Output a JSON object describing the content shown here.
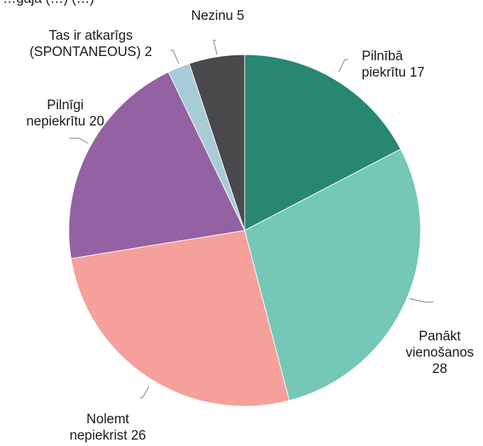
{
  "chart_data": {
    "type": "pie",
    "title": "…gajā (…) (…)",
    "categories": [
      "Pilnībā piekrītu",
      "Panākt vienošanos",
      "Nolemt nepiekrist",
      "Pilnīgi nepiekrītu",
      "Tas ir atkarīgs (SPONTANEOUS)",
      "Nezinu"
    ],
    "values": [
      17,
      28,
      26,
      20,
      2,
      5
    ],
    "label_lines": [
      [
        "Pilnībā",
        "piekrītu 17"
      ],
      [
        "Panākt",
        "vienošanos",
        "28"
      ],
      [
        "Nolemt",
        "nepiekrist 26"
      ],
      [
        "Pilnīgi",
        "nepiekrītu 20"
      ],
      [
        "Tas ir atkarīgs",
        "(SPONTANEOUS) 2"
      ],
      [
        "Nezinu 5"
      ]
    ],
    "colors": [
      "#278771",
      "#75c7b8",
      "#f5a09b",
      "#9461a3",
      "#a8ccd6",
      "#4a494c"
    ],
    "start_angle": "12 o'clock",
    "direction": "clockwise",
    "legend": "none"
  }
}
